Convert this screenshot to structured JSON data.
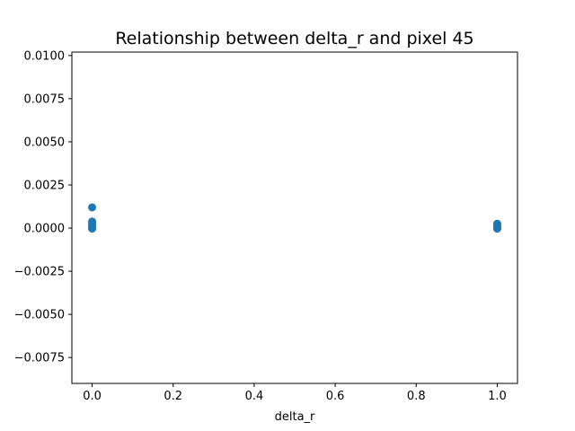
{
  "chart_data": {
    "type": "scatter",
    "title": "Relationship between delta_r and pixel 45",
    "xlabel": "delta_r",
    "ylabel": "",
    "xlim": [
      -0.05,
      1.05
    ],
    "ylim": [
      -0.009,
      0.0102
    ],
    "x_ticks": [
      0.0,
      0.2,
      0.4,
      0.6,
      0.8,
      1.0
    ],
    "x_tick_labels": [
      "0.0",
      "0.2",
      "0.4",
      "0.6",
      "0.8",
      "1.0"
    ],
    "y_ticks": [
      -0.0075,
      -0.005,
      -0.0025,
      0.0,
      0.0025,
      0.005,
      0.0075,
      0.01
    ],
    "y_tick_labels": [
      "−0.0075",
      "−0.0050",
      "−0.0025",
      "0.0000",
      "0.0025",
      "0.0050",
      "0.0075",
      "0.0100"
    ],
    "grid": false,
    "marker_color": "#1f77b4",
    "points": [
      {
        "x": 0.0,
        "y": 0.0012
      },
      {
        "x": 0.0,
        "y": 0.00038
      },
      {
        "x": 0.0,
        "y": 0.00022
      },
      {
        "x": 0.0,
        "y": 8e-05
      },
      {
        "x": 0.0,
        "y": 0.0
      },
      {
        "x": 0.0,
        "y": -3e-05
      },
      {
        "x": 1.0,
        "y": 0.00025
      },
      {
        "x": 1.0,
        "y": 0.0001
      },
      {
        "x": 1.0,
        "y": 0.0
      },
      {
        "x": 1.0,
        "y": -3e-05
      }
    ]
  }
}
